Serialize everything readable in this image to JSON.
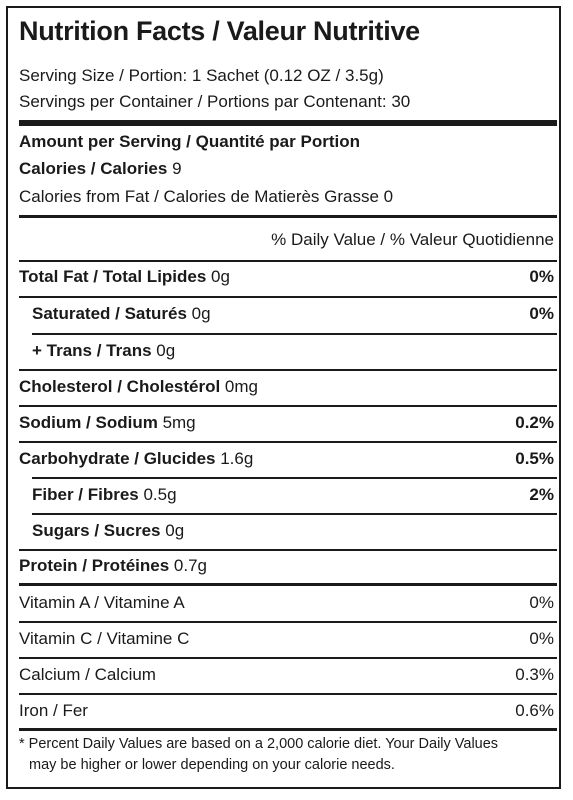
{
  "header": {
    "title": "Nutrition Facts / Valeur Nutritive",
    "serving_size": "Serving Size / Portion: 1 Sachet (0.12 OZ / 3.5g)",
    "servings_per_container": "Servings per Container / Portions par Contenant: 30"
  },
  "amount": {
    "heading": "Amount per Serving / Quantité par Portion",
    "calories_label": "Calories / Calories",
    "calories_value": " 9",
    "calories_from_fat": "Calories from Fat / Calories de Matierès Grasse 0"
  },
  "daily_value_heading": "% Daily Value / % Valeur Quotidienne",
  "nutrients": [
    {
      "name": "Total Fat / Total Lipides",
      "amount": " 0g",
      "pct": "0%"
    },
    {
      "name": "Saturated / Saturés",
      "amount": " 0g",
      "pct": "0%"
    },
    {
      "name": "+ Trans / Trans",
      "amount": " 0g",
      "pct": ""
    },
    {
      "name": "Cholesterol / Cholestérol",
      "amount": " 0mg",
      "pct": ""
    },
    {
      "name": "Sodium / Sodium",
      "amount": " 5mg",
      "pct": "0.2%"
    },
    {
      "name": "Carbohydrate / Glucides",
      "amount": " 1.6g",
      "pct": "0.5%"
    },
    {
      "name": "Fiber / Fibres",
      "amount": " 0.5g",
      "pct": "2%"
    },
    {
      "name": "Sugars / Sucres",
      "amount": " 0g",
      "pct": ""
    },
    {
      "name": "Protein / Protéines",
      "amount": " 0.7g",
      "pct": ""
    }
  ],
  "vitamins": [
    {
      "name": "Vitamin A / Vitamine A",
      "pct": "0%"
    },
    {
      "name": "Vitamin C / Vitamine C",
      "pct": "0%"
    },
    {
      "name": "Calcium / Calcium",
      "pct": "0.3%"
    },
    {
      "name": "Iron / Fer",
      "pct": "0.6%"
    }
  ],
  "footnote": {
    "line1": "* Percent Daily Values are based on a 2,000 calorie diet. Your Daily Values",
    "line2": "may be higher or lower depending on your calorie needs."
  }
}
